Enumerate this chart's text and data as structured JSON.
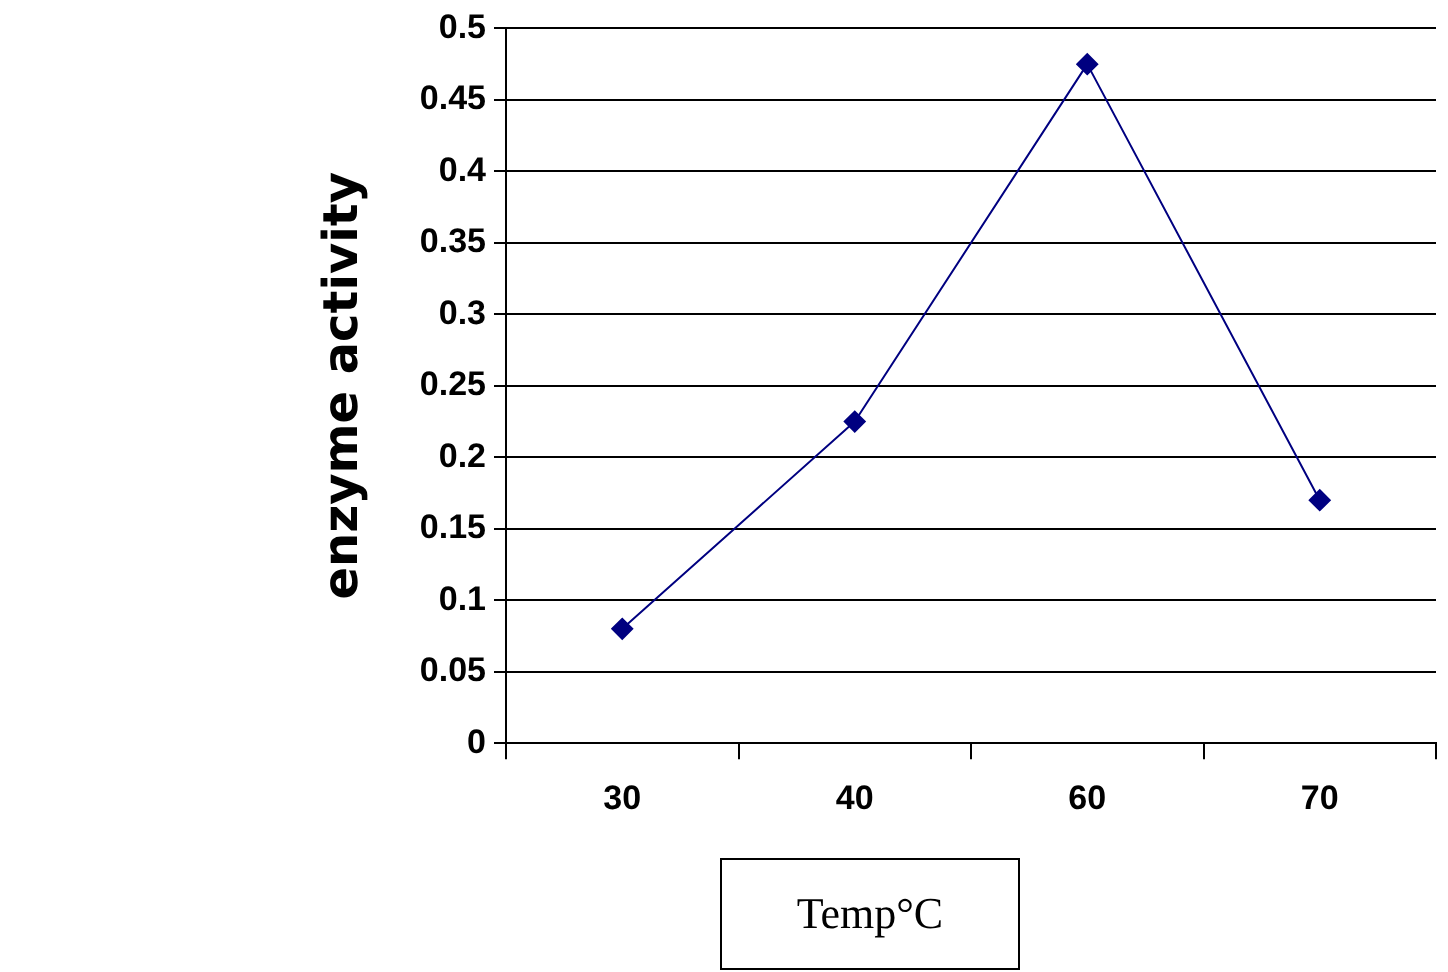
{
  "chart_data": {
    "type": "line",
    "xlabel": "Temp°C",
    "ylabel": "enzyme activity",
    "categories": [
      "30",
      "40",
      "60",
      "70"
    ],
    "series": [
      {
        "color": "#000080",
        "values": [
          0.08,
          0.225,
          0.475,
          0.17
        ]
      }
    ],
    "ylim": [
      0,
      0.5
    ],
    "yticks": [
      0,
      0.05,
      0.1,
      0.15,
      0.2,
      0.25,
      0.3,
      0.35,
      0.4,
      0.45,
      0.5
    ],
    "grid": "y",
    "legend": false,
    "marker": "diamond",
    "line_style": "solid"
  }
}
